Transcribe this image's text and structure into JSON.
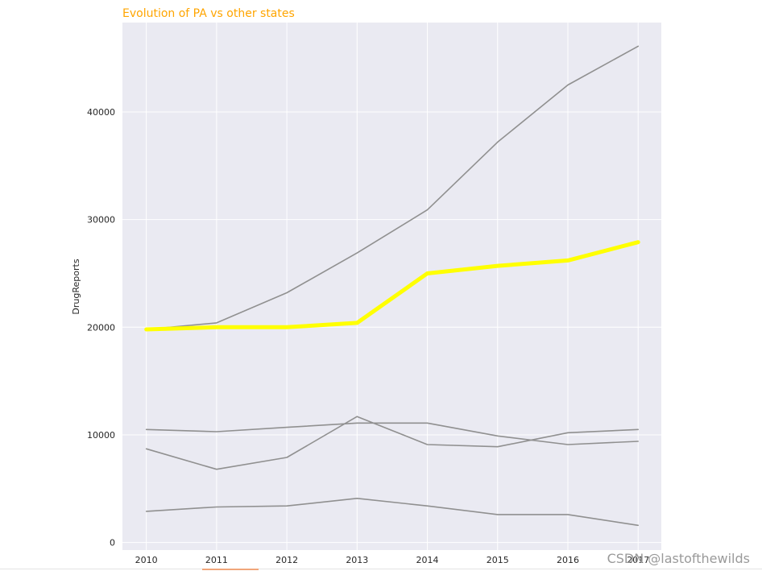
{
  "chart_data": {
    "type": "line",
    "title": "Evolution of PA vs other states",
    "xlabel": "",
    "ylabel": "DrugReports",
    "x": [
      2010,
      2011,
      2012,
      2013,
      2014,
      2015,
      2016,
      2017
    ],
    "xlim": [
      2009.66,
      2017.33
    ],
    "ylim": [
      -700,
      48300
    ],
    "yticks": [
      0,
      10000,
      20000,
      30000,
      40000
    ],
    "grid": true,
    "series": [
      {
        "name": "",
        "highlight": false,
        "values": [
          19800,
          20400,
          23200,
          26900,
          30900,
          37200,
          42500,
          46100
        ]
      },
      {
        "name": "",
        "highlight": false,
        "values": [
          10500,
          10300,
          10700,
          11100,
          11100,
          9900,
          9100,
          9400
        ]
      },
      {
        "name": "",
        "highlight": false,
        "values": [
          8700,
          6800,
          7900,
          11700,
          9100,
          8900,
          10200,
          10500
        ]
      },
      {
        "name": "",
        "highlight": false,
        "values": [
          2900,
          3300,
          3400,
          4100,
          3400,
          2600,
          2600,
          1600
        ]
      },
      {
        "name": "",
        "highlight": true,
        "values": [
          19800,
          20000,
          20000,
          20400,
          25000,
          25700,
          26200,
          27900
        ]
      }
    ]
  },
  "colors": {
    "title": "#ffa500",
    "plot_background": "#eaeaf2",
    "grid": "#ffffff",
    "other_states": "#909090",
    "highlight": "#ffff00"
  },
  "watermark": "CSDN @lastofthewilds"
}
